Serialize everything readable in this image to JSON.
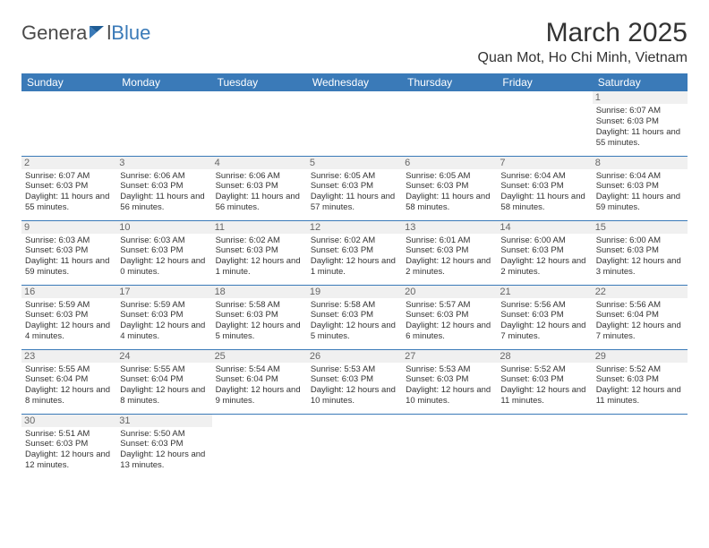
{
  "brand": {
    "part1": "Genera",
    "part2": "l",
    "part3": "Blue"
  },
  "title": "March 2025",
  "location": "Quan Mot, Ho Chi Minh, Vietnam",
  "colors": {
    "accent": "#3a7ab8",
    "text": "#333333",
    "bg": "#ffffff",
    "daybg": "#f0f0f0"
  },
  "weekdays": [
    "Sunday",
    "Monday",
    "Tuesday",
    "Wednesday",
    "Thursday",
    "Friday",
    "Saturday"
  ],
  "weeks": [
    [
      null,
      null,
      null,
      null,
      null,
      null,
      {
        "n": "1",
        "sr": "Sunrise: 6:07 AM",
        "ss": "Sunset: 6:03 PM",
        "dl": "Daylight: 11 hours and 55 minutes."
      }
    ],
    [
      {
        "n": "2",
        "sr": "Sunrise: 6:07 AM",
        "ss": "Sunset: 6:03 PM",
        "dl": "Daylight: 11 hours and 55 minutes."
      },
      {
        "n": "3",
        "sr": "Sunrise: 6:06 AM",
        "ss": "Sunset: 6:03 PM",
        "dl": "Daylight: 11 hours and 56 minutes."
      },
      {
        "n": "4",
        "sr": "Sunrise: 6:06 AM",
        "ss": "Sunset: 6:03 PM",
        "dl": "Daylight: 11 hours and 56 minutes."
      },
      {
        "n": "5",
        "sr": "Sunrise: 6:05 AM",
        "ss": "Sunset: 6:03 PM",
        "dl": "Daylight: 11 hours and 57 minutes."
      },
      {
        "n": "6",
        "sr": "Sunrise: 6:05 AM",
        "ss": "Sunset: 6:03 PM",
        "dl": "Daylight: 11 hours and 58 minutes."
      },
      {
        "n": "7",
        "sr": "Sunrise: 6:04 AM",
        "ss": "Sunset: 6:03 PM",
        "dl": "Daylight: 11 hours and 58 minutes."
      },
      {
        "n": "8",
        "sr": "Sunrise: 6:04 AM",
        "ss": "Sunset: 6:03 PM",
        "dl": "Daylight: 11 hours and 59 minutes."
      }
    ],
    [
      {
        "n": "9",
        "sr": "Sunrise: 6:03 AM",
        "ss": "Sunset: 6:03 PM",
        "dl": "Daylight: 11 hours and 59 minutes."
      },
      {
        "n": "10",
        "sr": "Sunrise: 6:03 AM",
        "ss": "Sunset: 6:03 PM",
        "dl": "Daylight: 12 hours and 0 minutes."
      },
      {
        "n": "11",
        "sr": "Sunrise: 6:02 AM",
        "ss": "Sunset: 6:03 PM",
        "dl": "Daylight: 12 hours and 1 minute."
      },
      {
        "n": "12",
        "sr": "Sunrise: 6:02 AM",
        "ss": "Sunset: 6:03 PM",
        "dl": "Daylight: 12 hours and 1 minute."
      },
      {
        "n": "13",
        "sr": "Sunrise: 6:01 AM",
        "ss": "Sunset: 6:03 PM",
        "dl": "Daylight: 12 hours and 2 minutes."
      },
      {
        "n": "14",
        "sr": "Sunrise: 6:00 AM",
        "ss": "Sunset: 6:03 PM",
        "dl": "Daylight: 12 hours and 2 minutes."
      },
      {
        "n": "15",
        "sr": "Sunrise: 6:00 AM",
        "ss": "Sunset: 6:03 PM",
        "dl": "Daylight: 12 hours and 3 minutes."
      }
    ],
    [
      {
        "n": "16",
        "sr": "Sunrise: 5:59 AM",
        "ss": "Sunset: 6:03 PM",
        "dl": "Daylight: 12 hours and 4 minutes."
      },
      {
        "n": "17",
        "sr": "Sunrise: 5:59 AM",
        "ss": "Sunset: 6:03 PM",
        "dl": "Daylight: 12 hours and 4 minutes."
      },
      {
        "n": "18",
        "sr": "Sunrise: 5:58 AM",
        "ss": "Sunset: 6:03 PM",
        "dl": "Daylight: 12 hours and 5 minutes."
      },
      {
        "n": "19",
        "sr": "Sunrise: 5:58 AM",
        "ss": "Sunset: 6:03 PM",
        "dl": "Daylight: 12 hours and 5 minutes."
      },
      {
        "n": "20",
        "sr": "Sunrise: 5:57 AM",
        "ss": "Sunset: 6:03 PM",
        "dl": "Daylight: 12 hours and 6 minutes."
      },
      {
        "n": "21",
        "sr": "Sunrise: 5:56 AM",
        "ss": "Sunset: 6:03 PM",
        "dl": "Daylight: 12 hours and 7 minutes."
      },
      {
        "n": "22",
        "sr": "Sunrise: 5:56 AM",
        "ss": "Sunset: 6:04 PM",
        "dl": "Daylight: 12 hours and 7 minutes."
      }
    ],
    [
      {
        "n": "23",
        "sr": "Sunrise: 5:55 AM",
        "ss": "Sunset: 6:04 PM",
        "dl": "Daylight: 12 hours and 8 minutes."
      },
      {
        "n": "24",
        "sr": "Sunrise: 5:55 AM",
        "ss": "Sunset: 6:04 PM",
        "dl": "Daylight: 12 hours and 8 minutes."
      },
      {
        "n": "25",
        "sr": "Sunrise: 5:54 AM",
        "ss": "Sunset: 6:04 PM",
        "dl": "Daylight: 12 hours and 9 minutes."
      },
      {
        "n": "26",
        "sr": "Sunrise: 5:53 AM",
        "ss": "Sunset: 6:03 PM",
        "dl": "Daylight: 12 hours and 10 minutes."
      },
      {
        "n": "27",
        "sr": "Sunrise: 5:53 AM",
        "ss": "Sunset: 6:03 PM",
        "dl": "Daylight: 12 hours and 10 minutes."
      },
      {
        "n": "28",
        "sr": "Sunrise: 5:52 AM",
        "ss": "Sunset: 6:03 PM",
        "dl": "Daylight: 12 hours and 11 minutes."
      },
      {
        "n": "29",
        "sr": "Sunrise: 5:52 AM",
        "ss": "Sunset: 6:03 PM",
        "dl": "Daylight: 12 hours and 11 minutes."
      }
    ],
    [
      {
        "n": "30",
        "sr": "Sunrise: 5:51 AM",
        "ss": "Sunset: 6:03 PM",
        "dl": "Daylight: 12 hours and 12 minutes."
      },
      {
        "n": "31",
        "sr": "Sunrise: 5:50 AM",
        "ss": "Sunset: 6:03 PM",
        "dl": "Daylight: 12 hours and 13 minutes."
      },
      null,
      null,
      null,
      null,
      null
    ]
  ]
}
